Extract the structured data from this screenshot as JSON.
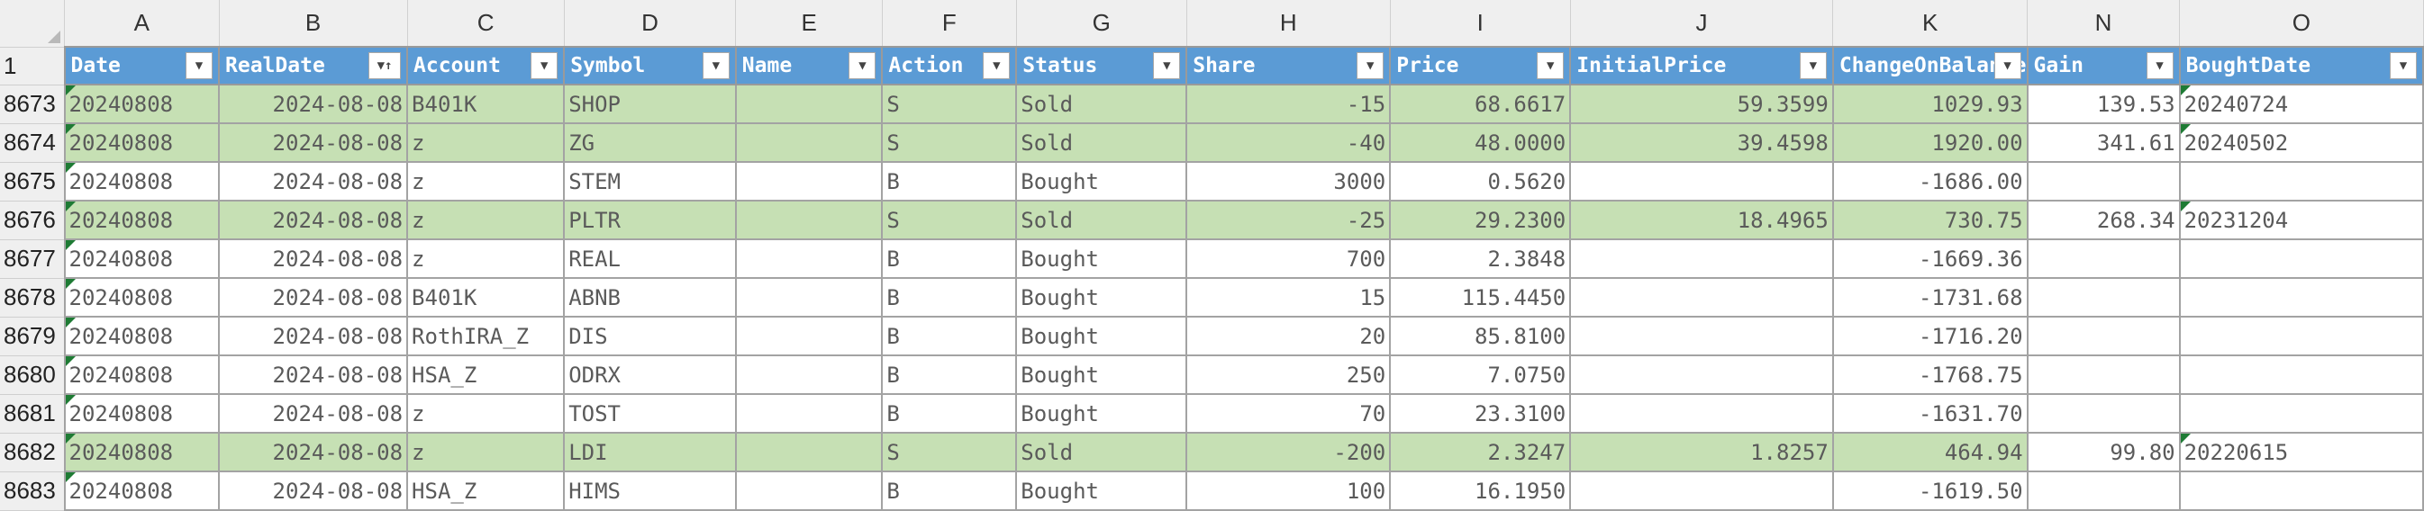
{
  "columns": [
    {
      "letter": "A",
      "header": "Date",
      "filter": "dropdown"
    },
    {
      "letter": "B",
      "header": "RealDate",
      "filter": "sorted"
    },
    {
      "letter": "C",
      "header": "Account",
      "filter": "dropdown"
    },
    {
      "letter": "D",
      "header": "Symbol",
      "filter": "dropdown"
    },
    {
      "letter": "E",
      "header": "Name",
      "filter": "dropdown"
    },
    {
      "letter": "F",
      "header": "Action",
      "filter": "dropdown"
    },
    {
      "letter": "G",
      "header": "Status",
      "filter": "dropdown"
    },
    {
      "letter": "H",
      "header": "Share",
      "filter": "dropdown"
    },
    {
      "letter": "I",
      "header": "Price",
      "filter": "dropdown"
    },
    {
      "letter": "J",
      "header": "InitialPrice",
      "filter": "dropdown"
    },
    {
      "letter": "K",
      "header": "ChangeOnBalance",
      "filter": "dropdown"
    },
    {
      "letter": "N",
      "header": "Gain",
      "filter": "dropdown"
    },
    {
      "letter": "O",
      "header": "BoughtDate",
      "filter": "dropdown"
    }
  ],
  "header_row_number": "1",
  "filter_icons": {
    "dropdown": "▼",
    "sorted": "▼↑"
  },
  "rows": [
    {
      "n": "8673",
      "sold": true,
      "date": "20240808",
      "realdate": "2024-08-08",
      "account": "B401K",
      "symbol": "SHOP",
      "name": "",
      "action": "S",
      "status": "Sold",
      "share": "-15",
      "price": "68.6617",
      "initial": "59.3599",
      "change": "1029.93",
      "gain": "139.53",
      "bought": "20240724"
    },
    {
      "n": "8674",
      "sold": true,
      "date": "20240808",
      "realdate": "2024-08-08",
      "account": "z",
      "symbol": "ZG",
      "name": "",
      "action": "S",
      "status": "Sold",
      "share": "-40",
      "price": "48.0000",
      "initial": "39.4598",
      "change": "1920.00",
      "gain": "341.61",
      "bought": "20240502"
    },
    {
      "n": "8675",
      "sold": false,
      "date": "20240808",
      "realdate": "2024-08-08",
      "account": "z",
      "symbol": "STEM",
      "name": "",
      "action": "B",
      "status": "Bought",
      "share": "3000",
      "price": "0.5620",
      "initial": "",
      "change": "-1686.00",
      "gain": "",
      "bought": ""
    },
    {
      "n": "8676",
      "sold": true,
      "date": "20240808",
      "realdate": "2024-08-08",
      "account": "z",
      "symbol": "PLTR",
      "name": "",
      "action": "S",
      "status": "Sold",
      "share": "-25",
      "price": "29.2300",
      "initial": "18.4965",
      "change": "730.75",
      "gain": "268.34",
      "bought": "20231204"
    },
    {
      "n": "8677",
      "sold": false,
      "date": "20240808",
      "realdate": "2024-08-08",
      "account": "z",
      "symbol": "REAL",
      "name": "",
      "action": "B",
      "status": "Bought",
      "share": "700",
      "price": "2.3848",
      "initial": "",
      "change": "-1669.36",
      "gain": "",
      "bought": ""
    },
    {
      "n": "8678",
      "sold": false,
      "date": "20240808",
      "realdate": "2024-08-08",
      "account": "B401K",
      "symbol": "ABNB",
      "name": "",
      "action": "B",
      "status": "Bought",
      "share": "15",
      "price": "115.4450",
      "initial": "",
      "change": "-1731.68",
      "gain": "",
      "bought": ""
    },
    {
      "n": "8679",
      "sold": false,
      "date": "20240808",
      "realdate": "2024-08-08",
      "account": "RothIRA_Z",
      "symbol": "DIS",
      "name": "",
      "action": "B",
      "status": "Bought",
      "share": "20",
      "price": "85.8100",
      "initial": "",
      "change": "-1716.20",
      "gain": "",
      "bought": ""
    },
    {
      "n": "8680",
      "sold": false,
      "date": "20240808",
      "realdate": "2024-08-08",
      "account": "HSA_Z",
      "symbol": "ODRX",
      "name": "",
      "action": "B",
      "status": "Bought",
      "share": "250",
      "price": "7.0750",
      "initial": "",
      "change": "-1768.75",
      "gain": "",
      "bought": ""
    },
    {
      "n": "8681",
      "sold": false,
      "date": "20240808",
      "realdate": "2024-08-08",
      "account": "z",
      "symbol": "TOST",
      "name": "",
      "action": "B",
      "status": "Bought",
      "share": "70",
      "price": "23.3100",
      "initial": "",
      "change": "-1631.70",
      "gain": "",
      "bought": ""
    },
    {
      "n": "8682",
      "sold": true,
      "date": "20240808",
      "realdate": "2024-08-08",
      "account": "z",
      "symbol": "LDI",
      "name": "",
      "action": "S",
      "status": "Sold",
      "share": "-200",
      "price": "2.3247",
      "initial": "1.8257",
      "change": "464.94",
      "gain": "99.80",
      "bought": "20220615"
    },
    {
      "n": "8683",
      "sold": false,
      "date": "20240808",
      "realdate": "2024-08-08",
      "account": "HSA_Z",
      "symbol": "HIMS",
      "name": "",
      "action": "B",
      "status": "Bought",
      "share": "100",
      "price": "16.1950",
      "initial": "",
      "change": "-1619.50",
      "gain": "",
      "bought": ""
    }
  ]
}
